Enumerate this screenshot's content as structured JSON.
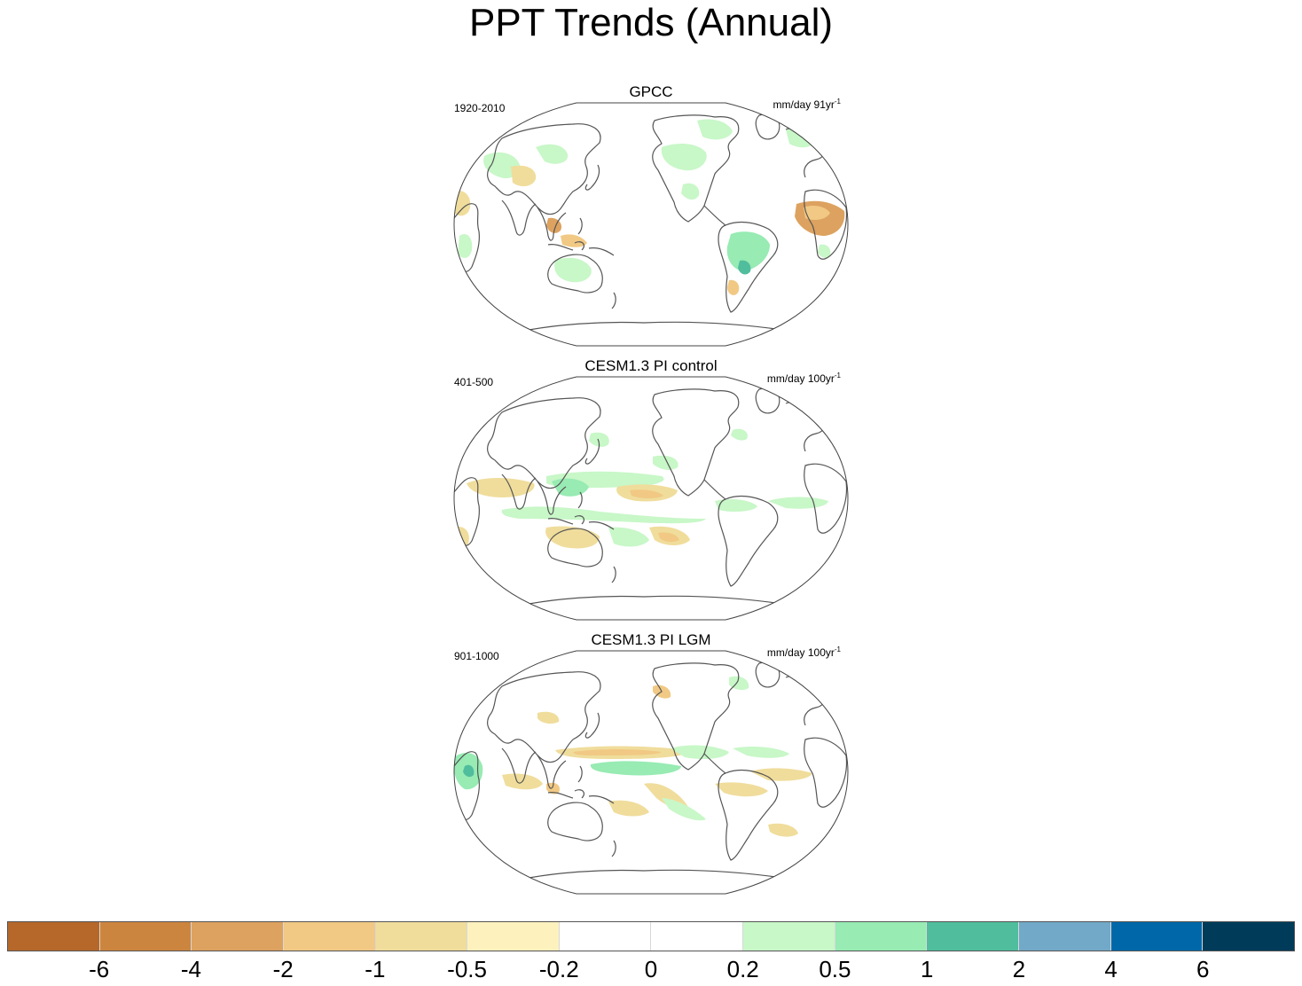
{
  "title": "PPT Trends (Annual)",
  "panels": [
    {
      "title": "GPCC",
      "period": "1920-2010",
      "units": "mm/day 91yr",
      "units_exp": "-1",
      "pattern": "observed land-only trends: moistening over North America east, Amazon, Australia, northern Eurasia; drying over Sahel/West Africa, Indonesia, southern China, Mediterranean"
    },
    {
      "title": "CESM1.3 PI control",
      "period": "401-500",
      "units": "mm/day 100yr",
      "units_exp": "-1",
      "pattern": "model trends: wet band over western tropical Pacific / ITCZ, dry patches in central equatorial Pacific and Maritime Continent, weak Atlantic ITCZ moistening"
    },
    {
      "title": "CESM1.3 PI LGM",
      "period": "901-1000",
      "units": "mm/day 100yr",
      "units_exp": "-1",
      "pattern": "model trends: dry band along north tropical Pacific, wet band along equatorial Pacific, wet anomaly over East Africa / Indian Ocean, dry over tropical Atlantic"
    }
  ],
  "colorbar": {
    "labels": [
      "-6",
      "-4",
      "-2",
      "-1",
      "-0.5",
      "-0.2",
      "0",
      "0.2",
      "0.5",
      "1",
      "2",
      "4",
      "6"
    ],
    "colors": [
      "#b5682a",
      "#cc853e",
      "#dda25f",
      "#f1c984",
      "#f0dd9c",
      "#fdf1be",
      "#ffffff",
      "#ffffff",
      "#c8f7c8",
      "#97ebb3",
      "#50bd9d",
      "#72a9c8",
      "#0068a9",
      "#003b5a"
    ]
  }
}
